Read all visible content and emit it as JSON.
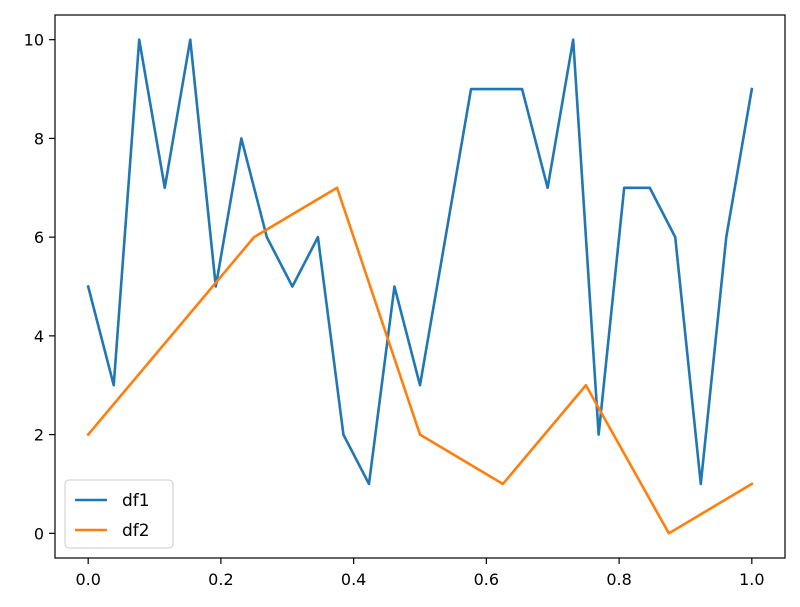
{
  "chart_data": {
    "type": "line",
    "title": "",
    "xlabel": "",
    "ylabel": "",
    "xlim": [
      -0.05,
      1.05
    ],
    "ylim": [
      -0.5,
      10.5
    ],
    "xticks": [
      0.0,
      0.2,
      0.4,
      0.6,
      0.8,
      1.0
    ],
    "xtick_labels": [
      "0.0",
      "0.2",
      "0.4",
      "0.6",
      "0.8",
      "1.0"
    ],
    "yticks": [
      0,
      2,
      4,
      6,
      8,
      10
    ],
    "ytick_labels": [
      "0",
      "2",
      "4",
      "6",
      "8",
      "10"
    ],
    "grid": false,
    "legend": "lower-left",
    "series": [
      {
        "name": "df1",
        "color": "#1f77b4",
        "x": [
          0.0,
          0.0385,
          0.0769,
          0.1154,
          0.1538,
          0.1923,
          0.2308,
          0.2692,
          0.3077,
          0.3462,
          0.3846,
          0.4231,
          0.4615,
          0.5,
          0.5385,
          0.5769,
          0.6154,
          0.6538,
          0.6923,
          0.7308,
          0.7692,
          0.8077,
          0.8462,
          0.8846,
          0.9231,
          0.9615,
          1.0
        ],
        "y": [
          5,
          3,
          10,
          7,
          10,
          5,
          8,
          6,
          5,
          6,
          2,
          1,
          5,
          3,
          6,
          9,
          9,
          9,
          7,
          10,
          2,
          7,
          7,
          6,
          1,
          6,
          9
        ]
      },
      {
        "name": "df2",
        "color": "#ff7f0e",
        "x": [
          0.0,
          0.125,
          0.25,
          0.375,
          0.5,
          0.625,
          0.75,
          0.875,
          1.0
        ],
        "y": [
          2,
          4,
          6,
          7,
          2,
          1,
          3,
          0,
          1
        ]
      }
    ]
  }
}
